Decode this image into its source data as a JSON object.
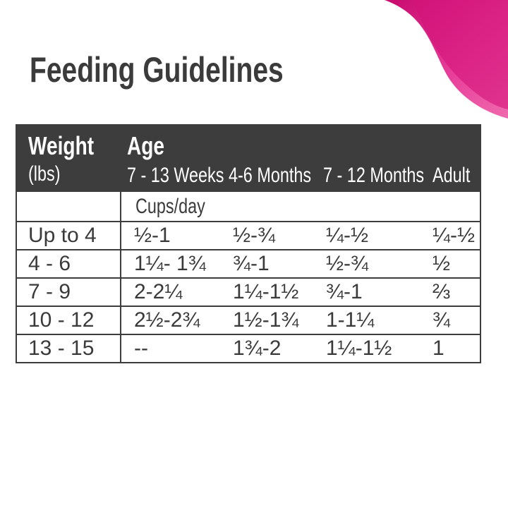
{
  "title": "Feeding Guidelines",
  "colors": {
    "accent": "#d6127a",
    "header_bg": "#3d3d3d"
  },
  "table": {
    "header": {
      "weight": "Weight",
      "weight_unit": "(lbs)",
      "age": "Age",
      "columns": [
        "7 - 13 Weeks",
        "4-6 Months",
        "7 - 12 Months",
        "Adult"
      ]
    },
    "unit_row": "Cups/day",
    "rows": [
      {
        "weight": "Up to 4",
        "values": [
          "½-1",
          "½-¾",
          "¼-½",
          "¼-½"
        ]
      },
      {
        "weight": "4 - 6",
        "values": [
          "1¼- 1¾",
          "¾-1",
          "½-¾",
          "½"
        ]
      },
      {
        "weight": "7 - 9",
        "values": [
          "2-2¼",
          "1¼-1½",
          "¾-1",
          "⅔"
        ]
      },
      {
        "weight": "10 - 12",
        "values": [
          "2½-2¾",
          "1½-1¾",
          "1-1¼",
          "¾"
        ]
      },
      {
        "weight": "13 - 15",
        "values": [
          " --",
          "1¾-2",
          "1¼-1½",
          "1"
        ]
      }
    ]
  }
}
